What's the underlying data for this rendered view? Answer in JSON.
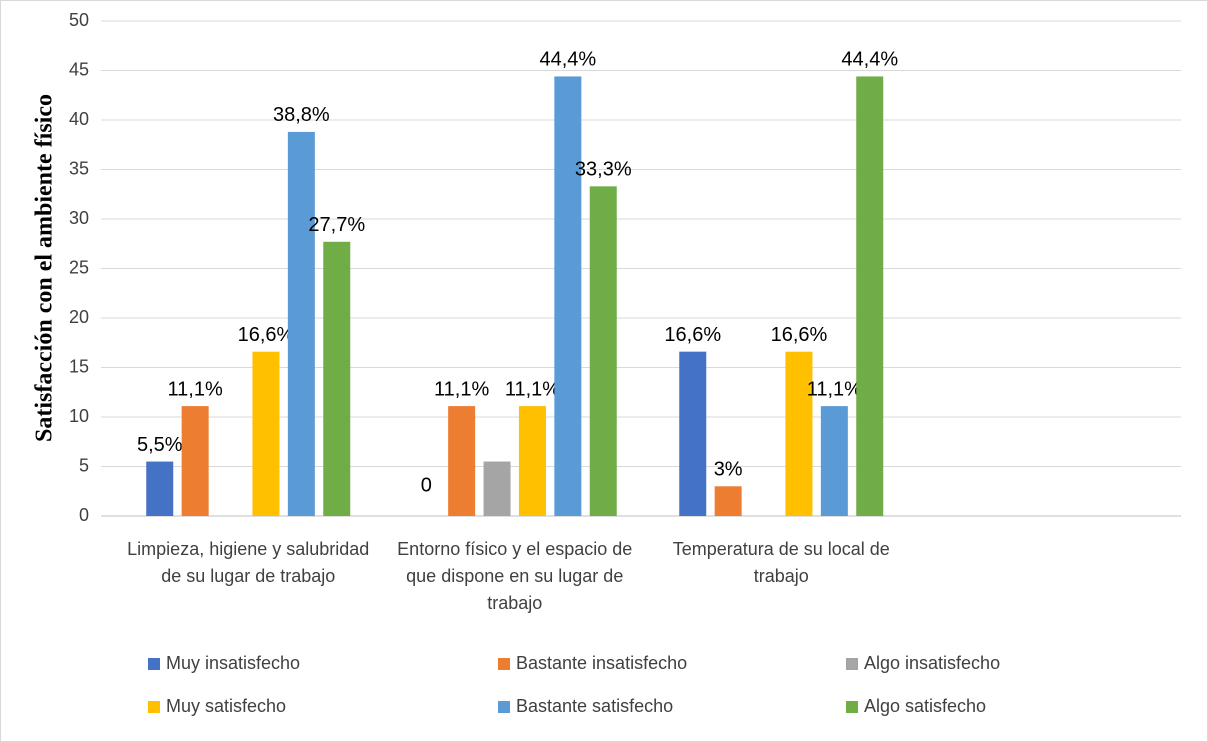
{
  "chart_data": {
    "type": "bar",
    "y_label": "Satisfacción con el ambiente físico",
    "categories": [
      "Limpieza, higiene y salubridad de su lugar de trabajo",
      "Entorno físico y el espacio de que dispone en su lugar de trabajo",
      "Temperatura de su local de trabajo",
      null
    ],
    "series": [
      {
        "name": "Muy insatisfecho",
        "color": "#4472c4",
        "values": [
          5.5,
          0,
          16.6,
          null
        ],
        "value_labels": [
          "5,5%",
          "0",
          "16,6%",
          null
        ]
      },
      {
        "name": "Bastante insatisfecho",
        "color": "#ed7d31",
        "values": [
          11.1,
          11.1,
          3,
          null
        ],
        "value_labels": [
          "11,1%",
          "11,1%",
          "3%",
          null
        ]
      },
      {
        "name": "Algo insatisfecho",
        "color": "#a5a5a5",
        "values": [
          null,
          5.5,
          null,
          null
        ]
      },
      {
        "name": "Muy satisfecho",
        "color": "#ffc000",
        "values": [
          16.6,
          11.1,
          16.6,
          null
        ],
        "value_labels": [
          "16,6%",
          "11,1%",
          "16,6%",
          null
        ]
      },
      {
        "name": "Bastante satisfecho",
        "color": "#5b9bd5",
        "values": [
          38.8,
          44.4,
          11.1,
          null
        ],
        "value_labels": [
          "38,8%",
          "44,4%",
          "11,1%",
          null
        ]
      },
      {
        "name": "Algo satisfecho",
        "color": "#70ad47",
        "values": [
          27.7,
          33.3,
          44.4,
          null
        ],
        "value_labels": [
          "27,7%",
          "33,3%",
          "44,4%",
          null
        ]
      }
    ],
    "ylim": [
      0,
      50
    ],
    "yticks": [
      0,
      5,
      10,
      15,
      20,
      25,
      30,
      35,
      40,
      45,
      50
    ],
    "grid": true,
    "legend": "bottom"
  }
}
